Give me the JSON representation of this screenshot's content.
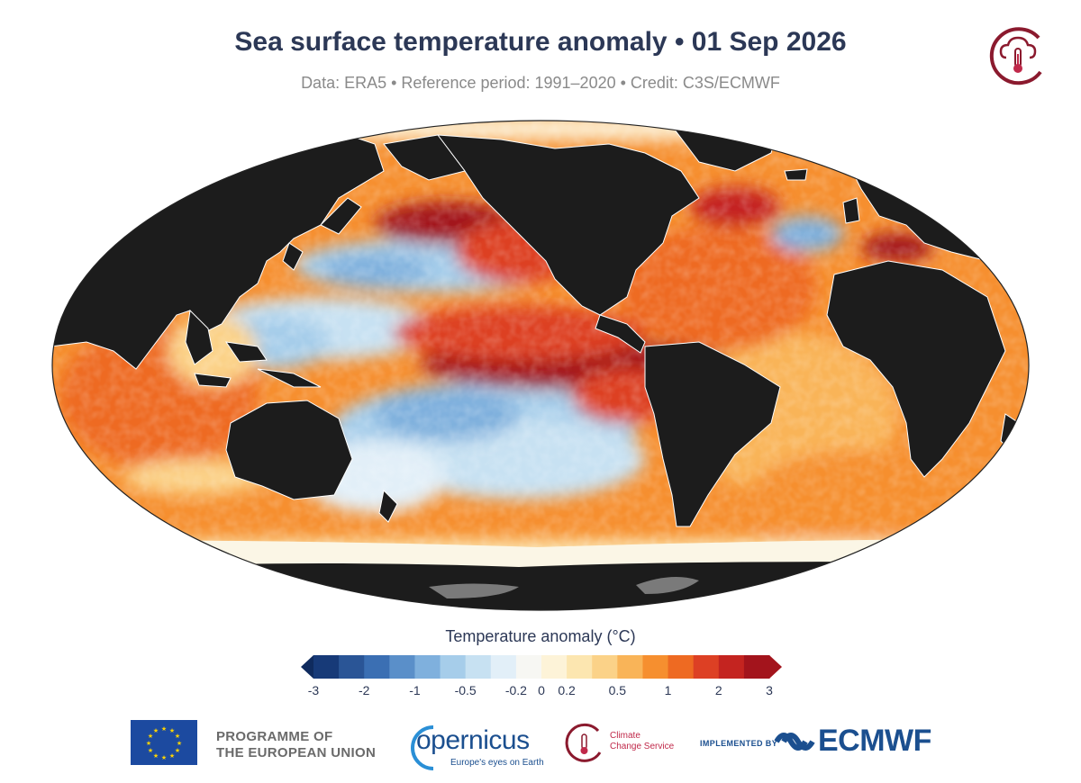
{
  "header": {
    "title": "Sea surface temperature anomaly • 01 Sep 2026",
    "subtitle": "Data: ERA5 • Reference period: 1991–2020 • Credit: C3S/ECMWF"
  },
  "legend": {
    "title": "Temperature anomaly (°C)",
    "ticks": [
      "-3",
      "-2",
      "-1",
      "-0.5",
      "-0.2",
      "0",
      "0.2",
      "0.5",
      "1",
      "2",
      "3"
    ],
    "colors": [
      "#173a78",
      "#2a5596",
      "#3b6fb3",
      "#5a8fc9",
      "#7fb0dd",
      "#a6cdea",
      "#c7e1f2",
      "#e2eff8",
      "#f7f7f3",
      "#fdf3d8",
      "#fce6b0",
      "#fbd288",
      "#f9b458",
      "#f68f2f",
      "#ee6a22",
      "#dd4024",
      "#c42420",
      "#a3141c"
    ],
    "extend_low": "#0f2b5e",
    "extend_high": "#a3141c",
    "land_color": "#1c1c1c",
    "sea_ice_color": "#7a7a7a"
  },
  "footer": {
    "eu_line1": "PROGRAMME OF",
    "eu_line2": "THE EUROPEAN UNION",
    "copernicus": "opernicus",
    "copernicus_tag": "Europe's eyes on Earth",
    "ccs_line1": "Climate",
    "ccs_line2": "Change Service",
    "implemented": "IMPLEMENTED BY",
    "ecmwf": "ECMWF"
  }
}
